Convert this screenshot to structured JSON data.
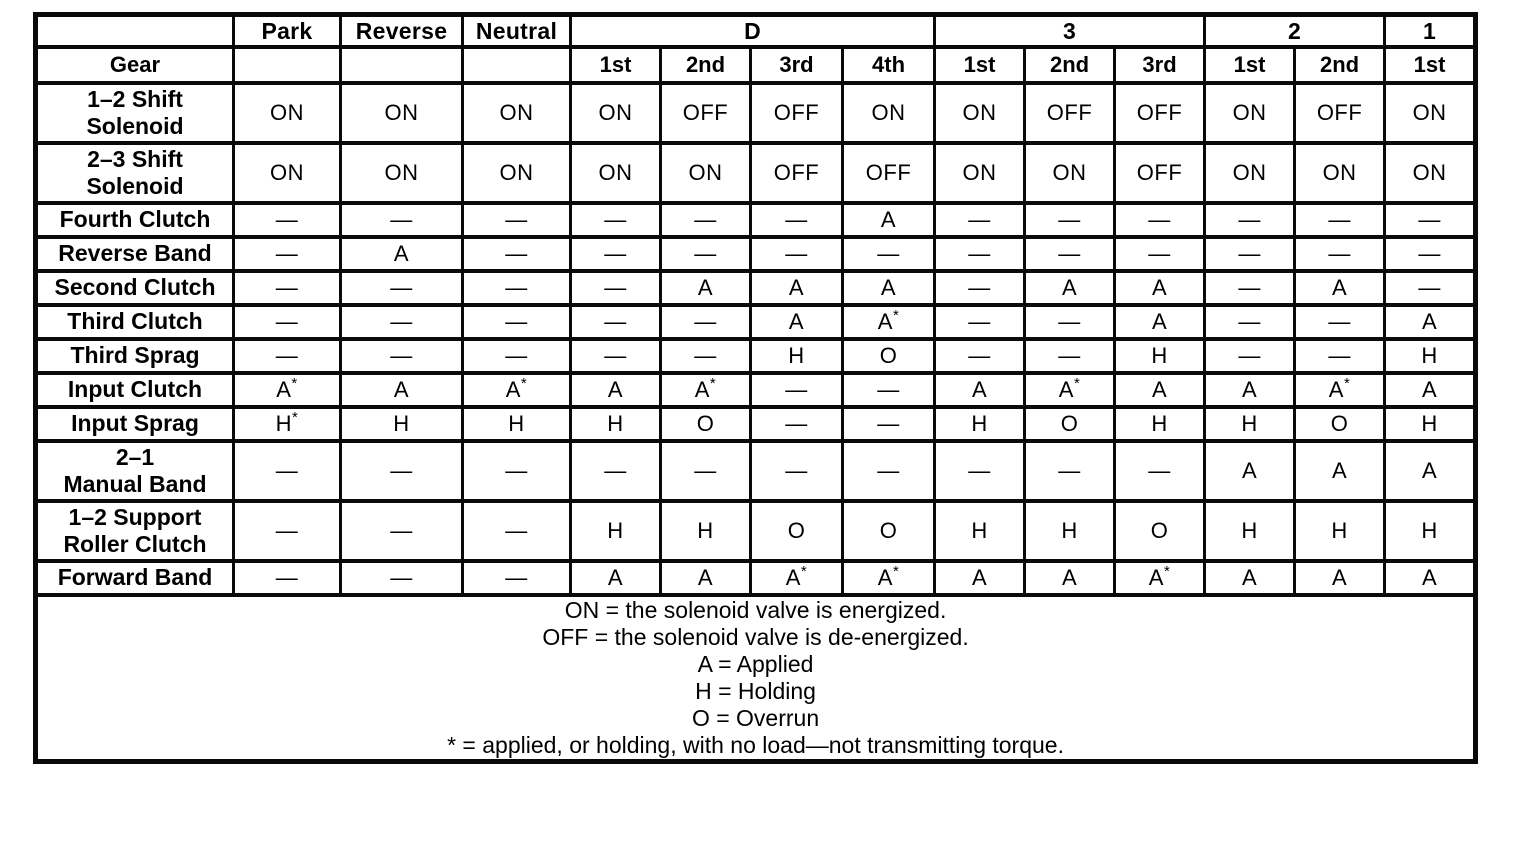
{
  "table": {
    "corner_label": "",
    "gear_label": "Gear",
    "groups": [
      {
        "label": "Park",
        "gears": [
          ""
        ]
      },
      {
        "label": "Reverse",
        "gears": [
          ""
        ]
      },
      {
        "label": "Neutral",
        "gears": [
          ""
        ]
      },
      {
        "label": "D",
        "gears": [
          "1st",
          "2nd",
          "3rd",
          "4th"
        ]
      },
      {
        "label": "3",
        "gears": [
          "1st",
          "2nd",
          "3rd"
        ]
      },
      {
        "label": "2",
        "gears": [
          "1st",
          "2nd"
        ]
      },
      {
        "label": "1",
        "gears": [
          "1st"
        ]
      }
    ],
    "rows": [
      {
        "label": "1–2 Shift\nSolenoid",
        "values": [
          "ON",
          "ON",
          "ON",
          "ON",
          "OFF",
          "OFF",
          "ON",
          "ON",
          "OFF",
          "OFF",
          "ON",
          "OFF",
          "ON"
        ]
      },
      {
        "label": "2–3 Shift\nSolenoid",
        "values": [
          "ON",
          "ON",
          "ON",
          "ON",
          "ON",
          "OFF",
          "OFF",
          "ON",
          "ON",
          "OFF",
          "ON",
          "ON",
          "ON"
        ]
      },
      {
        "label": "Fourth Clutch",
        "values": [
          "—",
          "—",
          "—",
          "—",
          "—",
          "—",
          "A",
          "—",
          "—",
          "—",
          "—",
          "—",
          "—"
        ]
      },
      {
        "label": "Reverse Band",
        "values": [
          "—",
          "A",
          "—",
          "—",
          "—",
          "—",
          "—",
          "—",
          "—",
          "—",
          "—",
          "—",
          "—"
        ]
      },
      {
        "label": "Second Clutch",
        "values": [
          "—",
          "—",
          "—",
          "—",
          "A",
          "A",
          "A",
          "—",
          "A",
          "A",
          "—",
          "A",
          "—"
        ]
      },
      {
        "label": "Third Clutch",
        "values": [
          "—",
          "—",
          "—",
          "—",
          "—",
          "A",
          "A*",
          "—",
          "—",
          "A",
          "—",
          "—",
          "A"
        ]
      },
      {
        "label": "Third Sprag",
        "values": [
          "—",
          "—",
          "—",
          "—",
          "—",
          "H",
          "O",
          "—",
          "—",
          "H",
          "—",
          "—",
          "H"
        ]
      },
      {
        "label": "Input Clutch",
        "values": [
          "A*",
          "A",
          "A*",
          "A",
          "A*",
          "—",
          "—",
          "A",
          "A*",
          "A",
          "A",
          "A*",
          "A"
        ]
      },
      {
        "label": "Input Sprag",
        "values": [
          "H*",
          "H",
          "H",
          "H",
          "O",
          "—",
          "—",
          "H",
          "O",
          "H",
          "H",
          "O",
          "H"
        ]
      },
      {
        "label": "2–1\nManual Band",
        "values": [
          "—",
          "—",
          "—",
          "—",
          "—",
          "—",
          "—",
          "—",
          "—",
          "—",
          "A",
          "A",
          "A"
        ]
      },
      {
        "label": "1–2 Support\nRoller Clutch",
        "values": [
          "—",
          "—",
          "—",
          "H",
          "H",
          "O",
          "O",
          "H",
          "H",
          "O",
          "H",
          "H",
          "H"
        ]
      },
      {
        "label": "Forward Band",
        "values": [
          "—",
          "—",
          "—",
          "A",
          "A",
          "A*",
          "A*",
          "A",
          "A",
          "A*",
          "A",
          "A",
          "A"
        ]
      }
    ],
    "legend": [
      "ON = the solenoid valve is energized.",
      "OFF = the solenoid valve is de-energized.",
      "A = Applied",
      "H = Holding",
      "O = Overrun",
      "* = applied, or holding, with no load—not transmitting torque."
    ]
  },
  "colors": {
    "border": "#0a0a0a",
    "background": "#ffffff",
    "text": "#000000"
  }
}
